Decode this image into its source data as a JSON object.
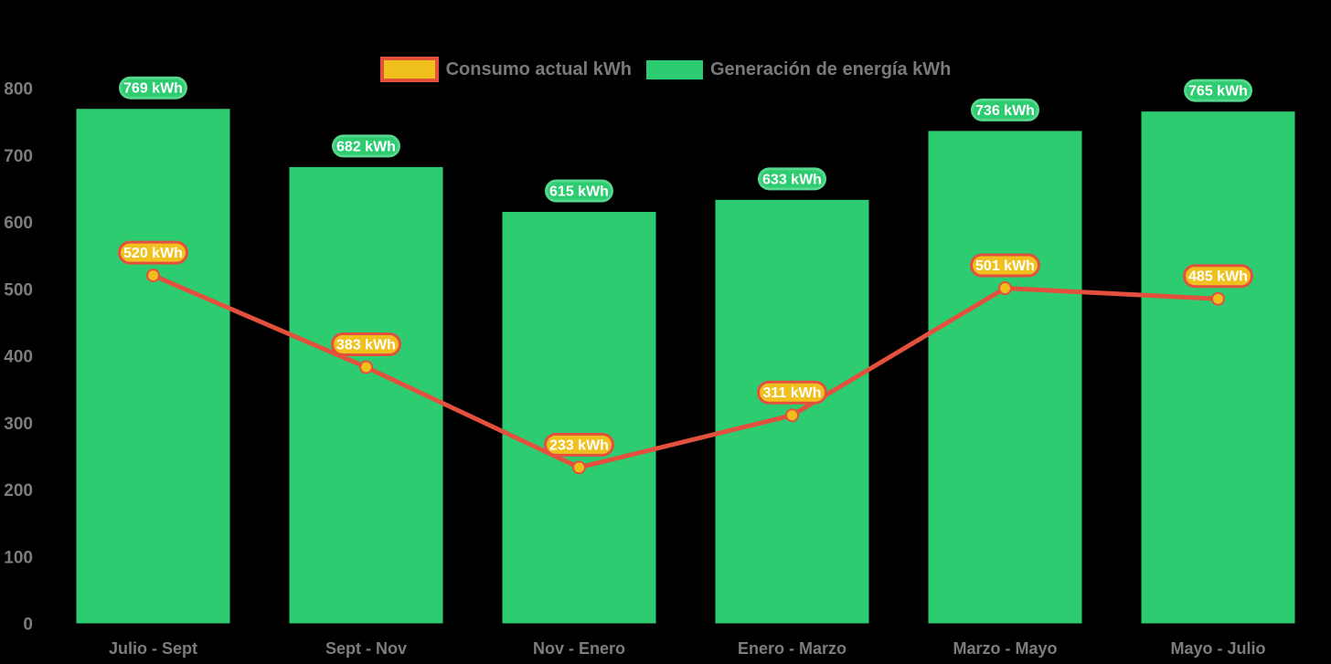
{
  "colors": {
    "background": "#000000",
    "bar": "#2ECC71",
    "bar_pill_fill": "#2ECC71",
    "bar_pill_border": "#55D78C",
    "line": "#E4503E",
    "point_fill": "#F2BE1B",
    "line_pill_fill": "#F0C01E",
    "line_pill_border": "#E4503E",
    "pill_text": "#FFFFFF",
    "axis_text": "#7D7D7D",
    "legend_text": "#7A7A7A"
  },
  "legend": {
    "items": [
      {
        "label": "Consumo actual kWh",
        "swatch_fill": "#F0C01E",
        "swatch_border": "#E4503E"
      },
      {
        "label": "Generación de energía kWh",
        "swatch_fill": "#2ECC71",
        "swatch_border": ""
      }
    ]
  },
  "chart_data": {
    "type": "combo-bar-line",
    "categories": [
      "Julio - Sept",
      "Sept - Nov",
      "Nov - Enero",
      "Enero - Marzo",
      "Marzo - Mayo",
      "Mayo - Julio"
    ],
    "series": [
      {
        "name": "Generación de energía kWh",
        "type": "bar",
        "color": "#2ECC71",
        "values": [
          769,
          682,
          615,
          633,
          736,
          765
        ],
        "data_labels": [
          "769 kWh",
          "682 kWh",
          "615 kWh",
          "633 kWh",
          "736 kWh",
          "765 kWh"
        ]
      },
      {
        "name": "Consumo actual kWh",
        "type": "line",
        "color": "#E4503E",
        "values": [
          520,
          383,
          233,
          311,
          501,
          485
        ],
        "data_labels": [
          "520 kWh",
          "383 kWh",
          "233 kWh",
          "311 kWh",
          "501 kWh",
          "485 kWh"
        ]
      }
    ],
    "title": "",
    "xlabel": "",
    "ylabel": "",
    "ylim": [
      0,
      800
    ],
    "ytick_labels": [
      "0",
      "100",
      "200",
      "300",
      "400",
      "500",
      "600",
      "700",
      "800"
    ],
    "grid": false,
    "legend_position": "top-center"
  }
}
